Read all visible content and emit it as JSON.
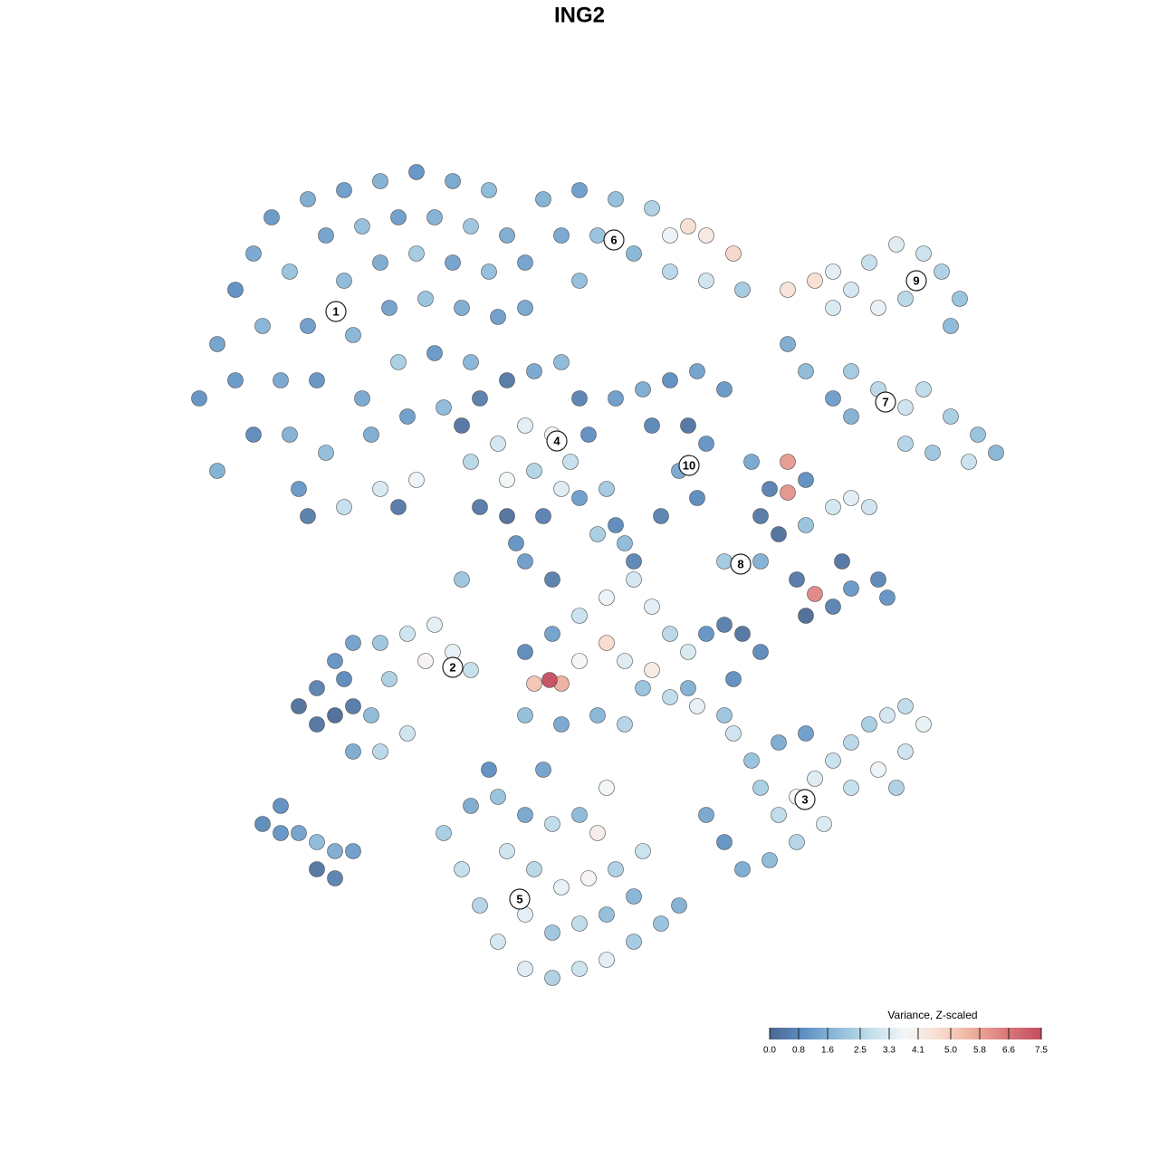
{
  "chart_data": {
    "type": "scatter",
    "title": "ING2",
    "xlim": [
      0,
      100
    ],
    "ylim": [
      0,
      100
    ],
    "x": [
      8,
      10,
      12,
      14,
      16,
      20,
      24,
      28,
      32,
      36,
      40,
      12,
      15,
      18,
      22,
      26,
      30,
      34,
      38,
      42,
      14,
      17,
      20,
      24,
      28,
      32,
      36,
      40,
      18,
      21,
      25,
      29,
      33,
      37,
      41,
      19,
      22,
      26,
      30,
      34,
      38,
      24,
      28,
      32,
      20,
      27,
      31,
      35,
      10,
      44,
      46,
      50,
      54,
      58,
      60,
      62,
      64,
      67,
      48,
      52,
      56,
      60,
      64,
      68,
      44,
      50,
      73,
      76,
      78,
      80,
      82,
      85,
      88,
      90,
      92,
      91,
      86,
      83,
      78,
      73,
      75,
      78,
      80,
      83,
      86,
      88,
      91,
      94,
      96,
      86,
      89,
      93,
      80,
      37,
      39,
      42,
      45,
      48,
      50,
      51,
      38,
      41,
      44,
      47,
      49,
      42,
      45,
      48,
      39,
      42,
      46,
      50,
      54,
      57,
      60,
      63,
      66,
      58,
      62,
      64,
      61,
      63,
      59,
      52,
      55,
      69,
      71,
      73,
      75,
      73,
      70,
      72,
      75,
      78,
      80,
      82,
      66,
      70,
      74,
      75,
      78,
      76,
      80,
      83,
      84,
      79,
      44,
      47,
      50,
      53,
      56,
      58,
      60,
      62,
      64,
      66,
      68,
      70,
      45,
      48,
      46.7,
      50,
      53,
      55,
      57,
      60,
      63,
      66,
      52,
      55,
      48,
      44,
      58,
      62,
      67,
      44,
      37,
      19,
      21,
      23,
      25,
      21,
      23,
      25,
      28,
      31,
      34,
      36,
      38,
      33,
      29,
      27,
      28,
      31,
      25,
      24,
      64,
      66,
      68,
      70,
      72,
      74,
      76,
      78,
      80,
      82,
      84,
      86,
      88,
      86,
      83,
      80,
      77,
      74,
      71,
      69,
      72,
      75,
      85,
      67,
      35,
      37,
      39,
      41,
      44,
      47,
      50,
      53,
      56,
      59,
      61,
      38,
      41,
      44,
      47,
      50,
      53,
      42,
      45,
      48,
      51,
      54,
      57,
      44,
      47,
      50,
      53,
      56,
      40,
      46,
      52,
      15,
      17,
      19,
      21,
      23,
      21,
      23,
      25,
      17,
      30,
      43,
      54,
      56,
      47,
      53
    ],
    "y": [
      70,
      76,
      82,
      86,
      90,
      92,
      93,
      94,
      95,
      94,
      93,
      72,
      78,
      84,
      88,
      89,
      90,
      90,
      89,
      88,
      66,
      72,
      78,
      83,
      85,
      86,
      85,
      84,
      66,
      72,
      77,
      80,
      81,
      80,
      79,
      60,
      64,
      70,
      74,
      75,
      74,
      58,
      60,
      61,
      57,
      66,
      68,
      69,
      62,
      80,
      92,
      93,
      92,
      91,
      88,
      89,
      88,
      86,
      88,
      88,
      86,
      84,
      83,
      82,
      85,
      83,
      82,
      83,
      84,
      82,
      85,
      87,
      86,
      84,
      81,
      78,
      81,
      80,
      80,
      76,
      73,
      70,
      73,
      71,
      69,
      71,
      68,
      66,
      64,
      65,
      64,
      63,
      68,
      67,
      70,
      72,
      73,
      74,
      70,
      66,
      63,
      65,
      67,
      66,
      63,
      61,
      62,
      60,
      58,
      57,
      57,
      59,
      70,
      71,
      72,
      73,
      71,
      67,
      67,
      65,
      62,
      59,
      57,
      55,
      54,
      63,
      60,
      63,
      61,
      59.6,
      57,
      55,
      56,
      58,
      59,
      58,
      52,
      52,
      50,
      46,
      47,
      48.4,
      49,
      50,
      48,
      52,
      42,
      44,
      46,
      48,
      50,
      47,
      44,
      42,
      44,
      45,
      44,
      42,
      38.5,
      38.5,
      38.9,
      41,
      43,
      41,
      38,
      37,
      36,
      35,
      35,
      34,
      34,
      35,
      40,
      38,
      39,
      52,
      50,
      36,
      34,
      35,
      36,
      38,
      41,
      43,
      43,
      44,
      45,
      42,
      40,
      41,
      39,
      35,
      31,
      33,
      31,
      39,
      24,
      21,
      18,
      27,
      24,
      26,
      28,
      30,
      32,
      34,
      35,
      36,
      34,
      31,
      29,
      27,
      23,
      21,
      19,
      30,
      32,
      33,
      27,
      33,
      22,
      18,
      14,
      10,
      7,
      6,
      7,
      8,
      10,
      12,
      14,
      25,
      26,
      24,
      23,
      24,
      27,
      20,
      18,
      16,
      17,
      18,
      20,
      13,
      11,
      12,
      13,
      15,
      29,
      29,
      22,
      23,
      22,
      22,
      21,
      20,
      18,
      17,
      20,
      25,
      58,
      54,
      56,
      52,
      50,
      60
    ],
    "values": [
      1.0,
      1.3,
      0.9,
      1.4,
      1.1,
      1.5,
      1.2,
      1.6,
      1.0,
      1.4,
      1.8,
      1.1,
      1.7,
      2.0,
      1.3,
      1.9,
      1.2,
      1.6,
      2.1,
      1.5,
      0.8,
      1.4,
      1.2,
      1.8,
      1.5,
      2.2,
      1.3,
      1.9,
      1.6,
      1.0,
      1.7,
      1.3,
      2.0,
      1.5,
      1.2,
      1.1,
      1.9,
      1.4,
      2.3,
      1.1,
      1.7,
      2.8,
      3.2,
      3.6,
      0.5,
      1.5,
      1.2,
      1.8,
      1.6,
      1.4,
      1.6,
      1.2,
      1.9,
      2.4,
      3.6,
      4.6,
      4.3,
      4.8,
      1.4,
      2.0,
      1.7,
      2.6,
      3.0,
      2.2,
      1.3,
      1.9,
      4.5,
      4.6,
      3.4,
      3.1,
      2.8,
      3.3,
      2.9,
      2.4,
      2.0,
      1.8,
      2.6,
      3.5,
      3.2,
      1.5,
      1.8,
      1.2,
      2.2,
      2.6,
      3.0,
      2.7,
      2.3,
      2.0,
      1.7,
      2.5,
      2.1,
      2.9,
      1.6,
      0.3,
      0.5,
      0.4,
      1.4,
      1.8,
      0.6,
      0.9,
      2.6,
      3.1,
      3.4,
      3.9,
      2.8,
      3.7,
      2.5,
      3.3,
      0.4,
      0.2,
      0.6,
      1.2,
      1.2,
      1.5,
      0.9,
      1.3,
      1.1,
      0.7,
      0.3,
      1.0,
      1.4,
      0.8,
      0.6,
      2.3,
      1.8,
      1.4,
      0.6,
      6.0,
      0.9,
      6.1,
      0.4,
      0.2,
      2.0,
      3.1,
      3.4,
      3.0,
      2.2,
      1.6,
      0.4,
      0.1,
      0.6,
      6.3,
      1.1,
      0.7,
      1.0,
      0.3,
      0.8,
      1.3,
      2.9,
      3.6,
      3.1,
      3.4,
      2.6,
      3.2,
      1.0,
      0.5,
      0.3,
      0.8,
      5.2,
      5.6,
      7.5,
      3.8,
      4.7,
      3.3,
      2.0,
      2.7,
      3.5,
      2.1,
      1.7,
      2.5,
      1.4,
      1.9,
      4.2,
      1.6,
      0.9,
      1.2,
      2.1,
      0.2,
      0.3,
      0.1,
      0.4,
      0.6,
      1.0,
      1.3,
      2.1,
      3.0,
      3.4,
      3.5,
      2.8,
      3.9,
      2.4,
      1.8,
      2.6,
      3.0,
      1.5,
      0.8,
      1.4,
      1.0,
      1.5,
      2.3,
      2.7,
      3.8,
      3.3,
      2.9,
      2.6,
      2.3,
      3.1,
      2.7,
      3.5,
      3.0,
      3.6,
      2.8,
      3.2,
      2.5,
      1.8,
      2.0,
      1.5,
      1.2,
      2.4,
      3.0,
      2.3,
      2.8,
      2.5,
      3.1,
      3.3,
      2.4,
      2.9,
      3.4,
      2.2,
      2.0,
      1.6,
      1.5,
      2.0,
      1.4,
      2.7,
      1.8,
      3.7,
      3.0,
      2.6,
      3.5,
      3.9,
      2.4,
      2.9,
      3.4,
      2.1,
      2.7,
      1.9,
      1.7,
      0.9,
      1.3,
      4.1,
      0.8,
      1.0,
      1.3,
      1.8,
      1.5,
      0.3,
      0.6,
      1.2,
      0.9,
      0.4,
      1.0,
      0.8,
      0.7,
      0.5,
      2.2
    ],
    "cluster_labels": [
      {
        "text": "1",
        "x": 23.1,
        "y": 79.6
      },
      {
        "text": "2",
        "x": 36,
        "y": 40.3
      },
      {
        "text": "3",
        "x": 74.9,
        "y": 25.7
      },
      {
        "text": "4",
        "x": 47.5,
        "y": 65.3
      },
      {
        "text": "5",
        "x": 43.4,
        "y": 14.7
      },
      {
        "text": "6",
        "x": 53.8,
        "y": 87.5
      },
      {
        "text": "7",
        "x": 83.8,
        "y": 69.6
      },
      {
        "text": "8",
        "x": 67.8,
        "y": 51.7
      },
      {
        "text": "9",
        "x": 87.2,
        "y": 83
      },
      {
        "text": "10",
        "x": 62.1,
        "y": 62.6
      }
    ],
    "colorbar": {
      "title": "Variance, Z-scaled",
      "lim": [
        0,
        7.5
      ],
      "ticks": [
        {
          "value": 0,
          "label": "0.0"
        },
        0.8,
        1.6,
        2.5,
        3.3,
        4.1,
        {
          "value": 5,
          "label": "5.0"
        },
        5.8,
        6.6,
        7.5
      ],
      "colors": [
        "#4a6690",
        "#5e8fc2",
        "#8fbcda",
        "#c4dfec",
        "#f4f6f8",
        "#f8dccf",
        "#eeae9c",
        "#d9777a",
        "#c44e5f"
      ]
    }
  }
}
